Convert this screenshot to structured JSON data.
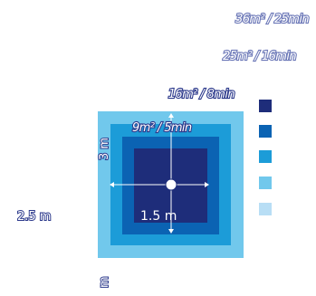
{
  "zones": [
    {
      "label": "36m² / 25min",
      "color": "#b8def5"
    },
    {
      "label": "25m² / 16min",
      "color": "#71c8ec"
    },
    {
      "label": "16m² / 8min",
      "color": "#1c9cd8"
    },
    {
      "label": "9m² / 5min",
      "color": "#0b63b3"
    },
    {
      "label": "",
      "color": "#1e2d7a"
    }
  ],
  "legend": [
    "#1e2d7a",
    "#0b63b3",
    "#1c9cd8",
    "#71c8ec",
    "#b8def5"
  ],
  "dimensions": {
    "inner_width": "1.5 m",
    "inner_height": "3 m",
    "outer_width": "2.5 m",
    "bottom_left": "m"
  }
}
